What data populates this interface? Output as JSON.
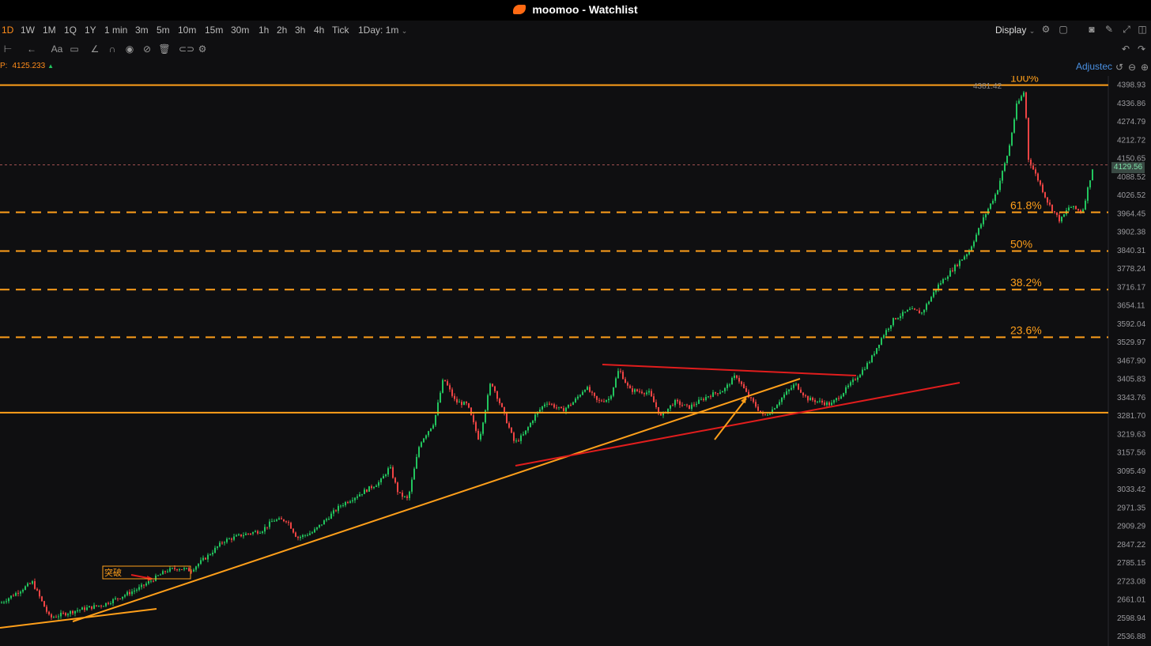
{
  "app": {
    "title": "moomoo - Watchlist"
  },
  "toolbar": {
    "timeframes": [
      "1D",
      "1W",
      "1M",
      "1Q",
      "1Y",
      "1 min",
      "3m",
      "5m",
      "10m",
      "15m",
      "30m",
      "1h",
      "2h",
      "3h",
      "4h",
      "Tick"
    ],
    "active_timeframe": "1D",
    "interval_select": "1Day: 1m",
    "display_label": "Display"
  },
  "quote": {
    "label": "P:",
    "value": "4125.233"
  },
  "adjusted_label": "Adjustec",
  "chart_data": {
    "type": "candlestick",
    "ylim": [
      2505,
      4430
    ],
    "y_ticks": [
      "4398.93",
      "4336.86",
      "4274.79",
      "4212.72",
      "4150.65",
      "4088.52",
      "4026.52",
      "3964.45",
      "3902.38",
      "3840.31",
      "3778.24",
      "3716.17",
      "3654.11",
      "3592.04",
      "3529.97",
      "3467.90",
      "3405.83",
      "3343.76",
      "3281.70",
      "3219.63",
      "3157.56",
      "3095.49",
      "3033.42",
      "2971.35",
      "2909.29",
      "2847.22",
      "2785.15",
      "2723.08",
      "2661.01",
      "2598.94",
      "2536.88"
    ],
    "y_tick_values": [
      4398.93,
      4336.86,
      4274.79,
      4212.72,
      4150.65,
      4088.52,
      4026.52,
      3964.45,
      3902.38,
      3840.31,
      3778.24,
      3716.17,
      3654.11,
      3592.04,
      3529.97,
      3467.9,
      3405.83,
      3343.76,
      3281.7,
      3219.63,
      3157.56,
      3095.49,
      3033.42,
      2971.35,
      2909.29,
      2847.22,
      2785.15,
      2723.08,
      2661.01,
      2598.94,
      2536.88
    ],
    "high_label": "4381.42",
    "last_price": "4129.56",
    "last_price_value": 4129.56,
    "up_color": "#22c55e",
    "down_color": "#ef4444",
    "close_path": [
      [
        0,
        2650
      ],
      [
        40,
        2720
      ],
      [
        62,
        2600
      ],
      [
        95,
        2625
      ],
      [
        130,
        2645
      ],
      [
        175,
        2700
      ],
      [
        210,
        2760
      ],
      [
        225,
        2768
      ],
      [
        240,
        2760
      ],
      [
        262,
        2810
      ],
      [
        282,
        2860
      ],
      [
        305,
        2880
      ],
      [
        330,
        2895
      ],
      [
        345,
        2930
      ],
      [
        362,
        2930
      ],
      [
        375,
        2870
      ],
      [
        395,
        2890
      ],
      [
        430,
        2980
      ],
      [
        455,
        3020
      ],
      [
        480,
        3060
      ],
      [
        492,
        3110
      ],
      [
        503,
        3020
      ],
      [
        515,
        3000
      ],
      [
        530,
        3190
      ],
      [
        548,
        3260
      ],
      [
        560,
        3410
      ],
      [
        575,
        3330
      ],
      [
        590,
        3320
      ],
      [
        605,
        3200
      ],
      [
        620,
        3400
      ],
      [
        635,
        3300
      ],
      [
        650,
        3190
      ],
      [
        662,
        3220
      ],
      [
        675,
        3280
      ],
      [
        690,
        3330
      ],
      [
        710,
        3300
      ],
      [
        725,
        3330
      ],
      [
        740,
        3380
      ],
      [
        755,
        3330
      ],
      [
        770,
        3340
      ],
      [
        782,
        3440
      ],
      [
        795,
        3370
      ],
      [
        820,
        3360
      ],
      [
        835,
        3280
      ],
      [
        852,
        3330
      ],
      [
        870,
        3310
      ],
      [
        895,
        3350
      ],
      [
        915,
        3370
      ],
      [
        930,
        3420
      ],
      [
        945,
        3350
      ],
      [
        965,
        3280
      ],
      [
        975,
        3300
      ],
      [
        990,
        3350
      ],
      [
        1005,
        3390
      ],
      [
        1020,
        3340
      ],
      [
        1035,
        3330
      ],
      [
        1050,
        3320
      ],
      [
        1065,
        3360
      ],
      [
        1085,
        3420
      ],
      [
        1100,
        3470
      ],
      [
        1115,
        3550
      ],
      [
        1130,
        3610
      ],
      [
        1150,
        3640
      ],
      [
        1165,
        3630
      ],
      [
        1185,
        3720
      ],
      [
        1205,
        3780
      ],
      [
        1225,
        3840
      ],
      [
        1245,
        3960
      ],
      [
        1260,
        4040
      ],
      [
        1275,
        4180
      ],
      [
        1285,
        4330
      ],
      [
        1295,
        4380
      ],
      [
        1300,
        4150
      ],
      [
        1312,
        4080
      ],
      [
        1325,
        4000
      ],
      [
        1340,
        3940
      ],
      [
        1352,
        3990
      ],
      [
        1368,
        3970
      ],
      [
        1382,
        4129
      ]
    ],
    "fib_levels": [
      {
        "label": "100%",
        "value": 4398.93
      },
      {
        "label": "61.8%",
        "value": 3969.5
      },
      {
        "label": "50%",
        "value": 3838.5
      },
      {
        "label": "38.2%",
        "value": 3708.5
      },
      {
        "label": "23.6%",
        "value": 3547.5
      }
    ],
    "support_level": 3293,
    "breakout_label": "突破"
  }
}
